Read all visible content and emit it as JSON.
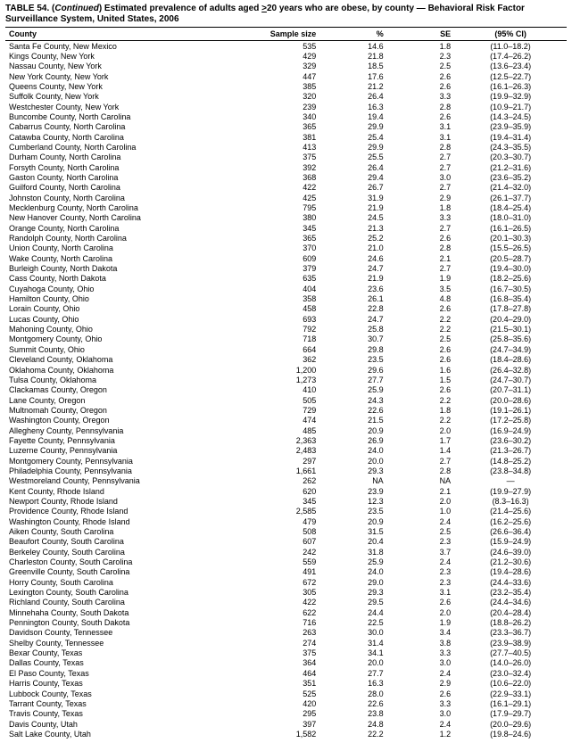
{
  "title_line1": "TABLE 54. (",
  "title_cont": "Continued",
  "title_line1b": ") Estimated prevalence of adults aged ",
  "title_u": ">",
  "title_line1c": "20 years who are obese, by county — Behavioral Risk Factor",
  "title_line2": "Surveillance System, United States, 2006",
  "columns": [
    "County",
    "Sample size",
    "%",
    "SE",
    "(95% CI)"
  ],
  "col_align": [
    "left",
    "right",
    "right",
    "right",
    "center"
  ],
  "rows": [
    [
      "Santa Fe County, New Mexico",
      "535",
      "14.6",
      "1.8",
      "(11.0–18.2)"
    ],
    [
      "Kings County, New York",
      "429",
      "21.8",
      "2.3",
      "(17.4–26.2)"
    ],
    [
      "Nassau County, New York",
      "329",
      "18.5",
      "2.5",
      "(13.6–23.4)"
    ],
    [
      "New York County, New York",
      "447",
      "17.6",
      "2.6",
      "(12.5–22.7)"
    ],
    [
      "Queens County, New York",
      "385",
      "21.2",
      "2.6",
      "(16.1–26.3)"
    ],
    [
      "Suffolk County, New York",
      "320",
      "26.4",
      "3.3",
      "(19.9–32.9)"
    ],
    [
      "Westchester County, New York",
      "239",
      "16.3",
      "2.8",
      "(10.9–21.7)"
    ],
    [
      "Buncombe County, North Carolina",
      "340",
      "19.4",
      "2.6",
      "(14.3–24.5)"
    ],
    [
      "Cabarrus County, North Carolina",
      "365",
      "29.9",
      "3.1",
      "(23.9–35.9)"
    ],
    [
      "Catawba County, North Carolina",
      "381",
      "25.4",
      "3.1",
      "(19.4–31.4)"
    ],
    [
      "Cumberland County, North Carolina",
      "413",
      "29.9",
      "2.8",
      "(24.3–35.5)"
    ],
    [
      "Durham County, North Carolina",
      "375",
      "25.5",
      "2.7",
      "(20.3–30.7)"
    ],
    [
      "Forsyth County, North Carolina",
      "392",
      "26.4",
      "2.7",
      "(21.2–31.6)"
    ],
    [
      "Gaston County, North Carolina",
      "368",
      "29.4",
      "3.0",
      "(23.6–35.2)"
    ],
    [
      "Guilford County, North Carolina",
      "422",
      "26.7",
      "2.7",
      "(21.4–32.0)"
    ],
    [
      "Johnston County, North Carolina",
      "425",
      "31.9",
      "2.9",
      "(26.1–37.7)"
    ],
    [
      "Mecklenburg County, North Carolina",
      "795",
      "21.9",
      "1.8",
      "(18.4–25.4)"
    ],
    [
      "New Hanover County, North Carolina",
      "380",
      "24.5",
      "3.3",
      "(18.0–31.0)"
    ],
    [
      "Orange County, North Carolina",
      "345",
      "21.3",
      "2.7",
      "(16.1–26.5)"
    ],
    [
      "Randolph County, North Carolina",
      "365",
      "25.2",
      "2.6",
      "(20.1–30.3)"
    ],
    [
      "Union County, North Carolina",
      "370",
      "21.0",
      "2.8",
      "(15.5–26.5)"
    ],
    [
      "Wake County, North Carolina",
      "609",
      "24.6",
      "2.1",
      "(20.5–28.7)"
    ],
    [
      "Burleigh County, North Dakota",
      "379",
      "24.7",
      "2.7",
      "(19.4–30.0)"
    ],
    [
      "Cass County, North Dakota",
      "635",
      "21.9",
      "1.9",
      "(18.2–25.6)"
    ],
    [
      "Cuyahoga County, Ohio",
      "404",
      "23.6",
      "3.5",
      "(16.7–30.5)"
    ],
    [
      "Hamilton County, Ohio",
      "358",
      "26.1",
      "4.8",
      "(16.8–35.4)"
    ],
    [
      "Lorain County, Ohio",
      "458",
      "22.8",
      "2.6",
      "(17.8–27.8)"
    ],
    [
      "Lucas County, Ohio",
      "693",
      "24.7",
      "2.2",
      "(20.4–29.0)"
    ],
    [
      "Mahoning County, Ohio",
      "792",
      "25.8",
      "2.2",
      "(21.5–30.1)"
    ],
    [
      "Montgomery County, Ohio",
      "718",
      "30.7",
      "2.5",
      "(25.8–35.6)"
    ],
    [
      "Summit County, Ohio",
      "664",
      "29.8",
      "2.6",
      "(24.7–34.9)"
    ],
    [
      "Cleveland County, Oklahoma",
      "362",
      "23.5",
      "2.6",
      "(18.4–28.6)"
    ],
    [
      "Oklahoma County, Oklahoma",
      "1,200",
      "29.6",
      "1.6",
      "(26.4–32.8)"
    ],
    [
      "Tulsa County, Oklahoma",
      "1,273",
      "27.7",
      "1.5",
      "(24.7–30.7)"
    ],
    [
      "Clackamas County, Oregon",
      "410",
      "25.9",
      "2.6",
      "(20.7–31.1)"
    ],
    [
      "Lane County, Oregon",
      "505",
      "24.3",
      "2.2",
      "(20.0–28.6)"
    ],
    [
      "Multnomah County, Oregon",
      "729",
      "22.6",
      "1.8",
      "(19.1–26.1)"
    ],
    [
      "Washington County, Oregon",
      "474",
      "21.5",
      "2.2",
      "(17.2–25.8)"
    ],
    [
      "Allegheny County, Pennsylvania",
      "485",
      "20.9",
      "2.0",
      "(16.9–24.9)"
    ],
    [
      "Fayette County, Pennsylvania",
      "2,363",
      "26.9",
      "1.7",
      "(23.6–30.2)"
    ],
    [
      "Luzerne County, Pennsylvania",
      "2,483",
      "24.0",
      "1.4",
      "(21.3–26.7)"
    ],
    [
      "Montgomery County, Pennsylvania",
      "297",
      "20.0",
      "2.7",
      "(14.8–25.2)"
    ],
    [
      "Philadelphia County, Pennsylvania",
      "1,661",
      "29.3",
      "2.8",
      "(23.8–34.8)"
    ],
    [
      "Westmoreland County, Pennsylvania",
      "262",
      "NA",
      "NA",
      "—"
    ],
    [
      "Kent County, Rhode Island",
      "620",
      "23.9",
      "2.1",
      "(19.9–27.9)"
    ],
    [
      "Newport County, Rhode Island",
      "345",
      "12.3",
      "2.0",
      "(8.3–16.3)"
    ],
    [
      "Providence County, Rhode Island",
      "2,585",
      "23.5",
      "1.0",
      "(21.4–25.6)"
    ],
    [
      "Washington County, Rhode Island",
      "479",
      "20.9",
      "2.4",
      "(16.2–25.6)"
    ],
    [
      "Aiken County, South Carolina",
      "508",
      "31.5",
      "2.5",
      "(26.6–36.4)"
    ],
    [
      "Beaufort County, South Carolina",
      "607",
      "20.4",
      "2.3",
      "(15.9–24.9)"
    ],
    [
      "Berkeley County, South Carolina",
      "242",
      "31.8",
      "3.7",
      "(24.6–39.0)"
    ],
    [
      "Charleston County, South Carolina",
      "559",
      "25.9",
      "2.4",
      "(21.2–30.6)"
    ],
    [
      "Greenville County, South Carolina",
      "491",
      "24.0",
      "2.3",
      "(19.4–28.6)"
    ],
    [
      "Horry County, South Carolina",
      "672",
      "29.0",
      "2.3",
      "(24.4–33.6)"
    ],
    [
      "Lexington County, South Carolina",
      "305",
      "29.3",
      "3.1",
      "(23.2–35.4)"
    ],
    [
      "Richland County, South Carolina",
      "422",
      "29.5",
      "2.6",
      "(24.4–34.6)"
    ],
    [
      "Minnehaha County, South Dakota",
      "622",
      "24.4",
      "2.0",
      "(20.4–28.4)"
    ],
    [
      "Pennington County, South Dakota",
      "716",
      "22.5",
      "1.9",
      "(18.8–26.2)"
    ],
    [
      "Davidson County, Tennessee",
      "263",
      "30.0",
      "3.4",
      "(23.3–36.7)"
    ],
    [
      "Shelby County, Tennessee",
      "274",
      "31.4",
      "3.8",
      "(23.9–38.9)"
    ],
    [
      "Bexar County, Texas",
      "375",
      "34.1",
      "3.3",
      "(27.7–40.5)"
    ],
    [
      "Dallas County, Texas",
      "364",
      "20.0",
      "3.0",
      "(14.0–26.0)"
    ],
    [
      "El Paso County, Texas",
      "464",
      "27.7",
      "2.4",
      "(23.0–32.4)"
    ],
    [
      "Harris County, Texas",
      "351",
      "16.3",
      "2.9",
      "(10.6–22.0)"
    ],
    [
      "Lubbock County, Texas",
      "525",
      "28.0",
      "2.6",
      "(22.9–33.1)"
    ],
    [
      "Tarrant County, Texas",
      "420",
      "22.6",
      "3.3",
      "(16.1–29.1)"
    ],
    [
      "Travis County, Texas",
      "295",
      "23.8",
      "3.0",
      "(17.9–29.7)"
    ],
    [
      "Davis County, Utah",
      "397",
      "24.8",
      "2.4",
      "(20.0–29.6)"
    ],
    [
      "Salt Lake County, Utah",
      "1,582",
      "22.2",
      "1.2",
      "(19.8–24.6)"
    ]
  ]
}
